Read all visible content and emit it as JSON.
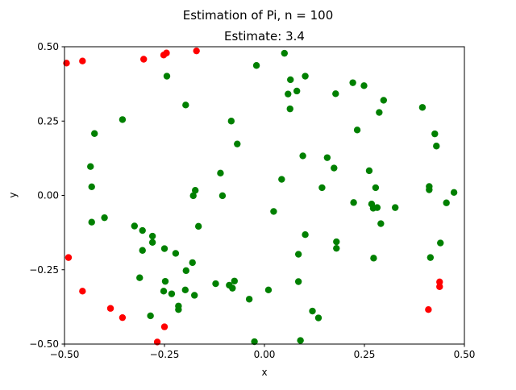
{
  "figure": {
    "suptitle": "Estimation of Pi, n = 100",
    "title": "Estimate: 3.4"
  },
  "chart_data": {
    "type": "scatter",
    "title": "Estimate: 3.4",
    "suptitle": "Estimation of Pi, n = 100",
    "xlabel": "x",
    "ylabel": "y",
    "xlim": [
      -0.5,
      0.5
    ],
    "ylim": [
      -0.5,
      0.5
    ],
    "xticks": [
      "−0.50",
      "−0.25",
      "0.00",
      "0.25",
      "0.50"
    ],
    "yticks": [
      "−0.50",
      "−0.25",
      "0.00",
      "0.25",
      "0.50"
    ],
    "xtick_values": [
      -0.5,
      -0.25,
      0,
      0.25,
      0.5
    ],
    "ytick_values": [
      -0.5,
      -0.25,
      0,
      0.25,
      0.5
    ],
    "grid": false,
    "series": [
      {
        "color": "#008000",
        "points": [
          [
            -0.244,
            0.401
          ],
          [
            -0.197,
            0.304
          ],
          [
            -0.02,
            0.437
          ],
          [
            0.05,
            0.478
          ],
          [
            0.065,
            0.389
          ],
          [
            0.102,
            0.401
          ],
          [
            0.081,
            0.351
          ],
          [
            0.059,
            0.341
          ],
          [
            0.064,
            0.291
          ],
          [
            0.178,
            0.342
          ],
          [
            0.221,
            0.379
          ],
          [
            0.249,
            0.369
          ],
          [
            0.298,
            0.32
          ],
          [
            0.287,
            0.279
          ],
          [
            0.395,
            0.296
          ],
          [
            -0.355,
            0.255
          ],
          [
            -0.425,
            0.208
          ],
          [
            -0.083,
            0.25
          ],
          [
            -0.068,
            0.173
          ],
          [
            0.232,
            0.22
          ],
          [
            0.426,
            0.207
          ],
          [
            0.43,
            0.166
          ],
          [
            -0.435,
            0.097
          ],
          [
            0.096,
            0.133
          ],
          [
            0.157,
            0.127
          ],
          [
            0.174,
            0.092
          ],
          [
            0.262,
            0.083
          ],
          [
            -0.432,
            0.029
          ],
          [
            -0.11,
            0.075
          ],
          [
            0.043,
            0.054
          ],
          [
            -0.173,
            0.017
          ],
          [
            -0.178,
            -0.001
          ],
          [
            -0.105,
            -0.001
          ],
          [
            0.144,
            0.026
          ],
          [
            0.278,
            0.026
          ],
          [
            0.412,
            0.03
          ],
          [
            0.412,
            0.019
          ],
          [
            0.474,
            0.01
          ],
          [
            0.223,
            -0.024
          ],
          [
            0.268,
            -0.029
          ],
          [
            0.272,
            -0.043
          ],
          [
            0.282,
            -0.041
          ],
          [
            0.327,
            -0.041
          ],
          [
            0.455,
            -0.025
          ],
          [
            0.023,
            -0.054
          ],
          [
            -0.4,
            -0.075
          ],
          [
            -0.432,
            -0.09
          ],
          [
            -0.325,
            -0.103
          ],
          [
            -0.165,
            -0.104
          ],
          [
            -0.305,
            -0.118
          ],
          [
            0.291,
            -0.095
          ],
          [
            -0.28,
            -0.137
          ],
          [
            -0.28,
            -0.158
          ],
          [
            0.102,
            -0.132
          ],
          [
            0.18,
            -0.156
          ],
          [
            -0.305,
            -0.185
          ],
          [
            -0.25,
            -0.179
          ],
          [
            -0.222,
            -0.195
          ],
          [
            0.18,
            -0.178
          ],
          [
            0.44,
            -0.16
          ],
          [
            0.085,
            -0.198
          ],
          [
            0.415,
            -0.209
          ],
          [
            0.273,
            -0.211
          ],
          [
            -0.18,
            -0.226
          ],
          [
            -0.196,
            -0.253
          ],
          [
            -0.312,
            -0.277
          ],
          [
            -0.248,
            -0.289
          ],
          [
            -0.122,
            -0.297
          ],
          [
            -0.075,
            -0.288
          ],
          [
            -0.088,
            -0.302
          ],
          [
            -0.08,
            -0.312
          ],
          [
            0.085,
            -0.29
          ],
          [
            0.01,
            -0.318
          ],
          [
            -0.252,
            -0.322
          ],
          [
            -0.198,
            -0.318
          ],
          [
            -0.232,
            -0.331
          ],
          [
            -0.175,
            -0.336
          ],
          [
            -0.038,
            -0.349
          ],
          [
            -0.215,
            -0.372
          ],
          [
            -0.215,
            -0.384
          ],
          [
            -0.285,
            -0.405
          ],
          [
            0.12,
            -0.389
          ],
          [
            0.135,
            -0.412
          ],
          [
            -0.025,
            -0.492
          ],
          [
            0.09,
            -0.488
          ]
        ]
      },
      {
        "color": "#ff0000",
        "points": [
          [
            -0.495,
            0.445
          ],
          [
            -0.455,
            0.452
          ],
          [
            -0.302,
            0.458
          ],
          [
            -0.252,
            0.472
          ],
          [
            -0.245,
            0.479
          ],
          [
            -0.17,
            0.486
          ],
          [
            -0.49,
            -0.209
          ],
          [
            -0.455,
            -0.322
          ],
          [
            -0.385,
            -0.38
          ],
          [
            -0.355,
            -0.411
          ],
          [
            -0.25,
            -0.442
          ],
          [
            -0.268,
            -0.493
          ],
          [
            0.41,
            -0.384
          ],
          [
            0.438,
            -0.291
          ],
          [
            0.438,
            -0.307
          ]
        ]
      }
    ]
  }
}
